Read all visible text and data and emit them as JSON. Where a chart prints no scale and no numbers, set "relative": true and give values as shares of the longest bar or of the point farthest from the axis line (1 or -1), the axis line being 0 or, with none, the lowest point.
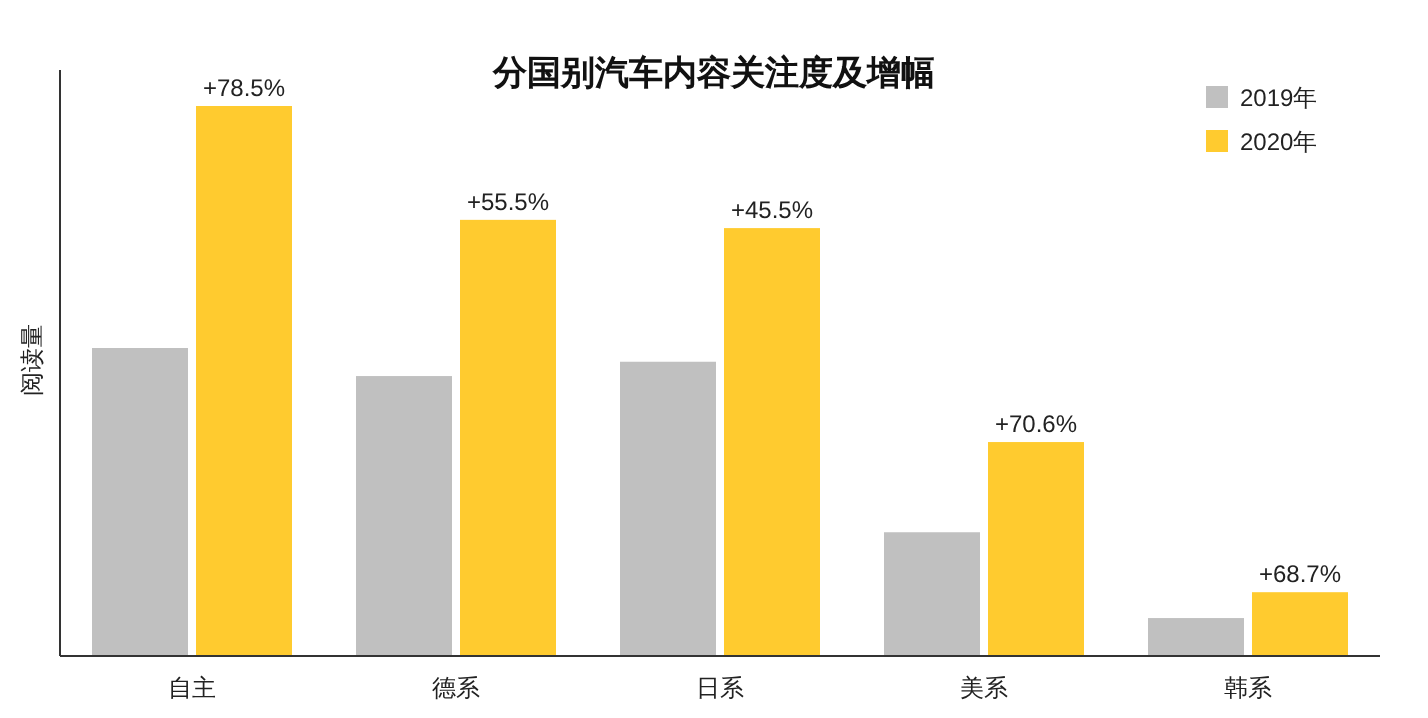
{
  "chart_data": {
    "type": "bar",
    "title": "分国别汽车内容关注度及增幅",
    "ylabel": "阅读量",
    "relative": true,
    "legend": "top right",
    "annotations": [
      {
        "text": "+78.5%",
        "x": "自主",
        "y": 1
      },
      {
        "text": "+55.5%",
        "x": "德系",
        "y": 0.793
      },
      {
        "text": "+45.5%",
        "x": "日系",
        "y": 0.778
      },
      {
        "text": "+70.6%",
        "x": "美系",
        "y": 0.389
      },
      {
        "text": "+68.7%",
        "x": "韩系",
        "y": 0.116
      }
    ],
    "categories": [
      "自主",
      "德系",
      "日系",
      "美系",
      "韩系"
    ],
    "series": [
      {
        "name": "2019年",
        "color": "#c0c0c0",
        "values": [
          0.56,
          0.509,
          0.535,
          0.225,
          0.069
        ]
      },
      {
        "name": "2020年",
        "color": "#ffcb2f",
        "values": [
          1,
          0.793,
          0.778,
          0.389,
          0.116
        ]
      }
    ]
  }
}
